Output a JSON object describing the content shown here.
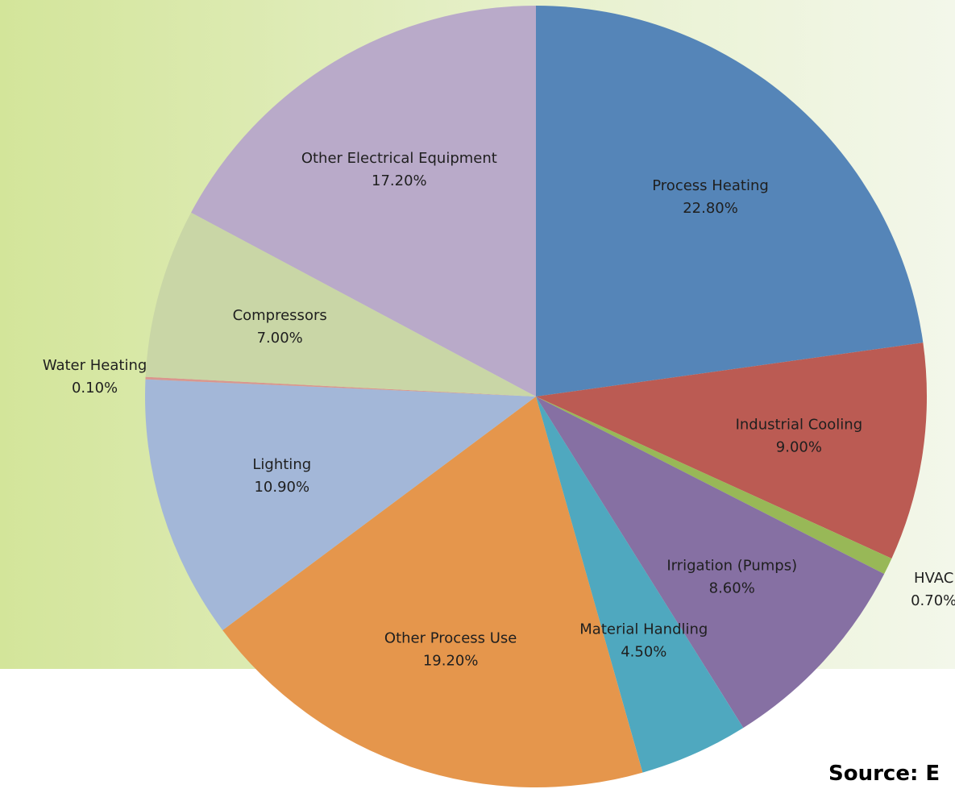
{
  "chart_data": {
    "type": "pie",
    "categories": [
      "Process Heating",
      "Industrial Cooling",
      "HVAC",
      "Irrigation (Pumps)",
      "Material Handling",
      "Other Process Use",
      "Lighting",
      "Water Heating",
      "Compressors",
      "Other Electrical Equipment"
    ],
    "values": [
      22.8,
      9.0,
      0.7,
      8.6,
      4.5,
      19.2,
      10.9,
      0.1,
      7.0,
      17.2
    ],
    "value_labels": [
      "22.80%",
      "9.00%",
      "0.70%",
      "8.60%",
      "4.50%",
      "19.20%",
      "10.90%",
      "0.10%",
      "7.00%",
      "17.20%"
    ],
    "colors": [
      "#5585b8",
      "#bb5b53",
      "#98b857",
      "#8670a3",
      "#4fa8bf",
      "#e5964c",
      "#a3b7d8",
      "#d9968f",
      "#c9d6a6",
      "#b9aac9"
    ],
    "source": "Source: E"
  }
}
